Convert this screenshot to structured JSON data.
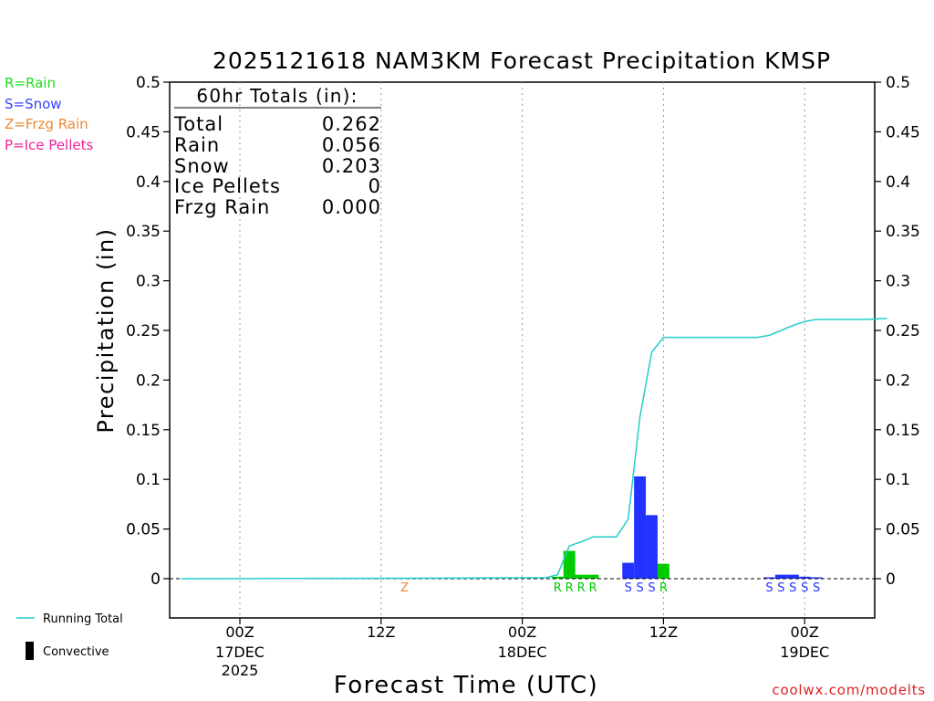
{
  "chart_data": {
    "type": "bar",
    "title": "2025121618 NAM3KM Forecast Precipitation KMSP",
    "xlabel": "Forecast Time (UTC)",
    "ylabel": "Precipitation (in)",
    "ylim": [
      -0.04,
      0.5
    ],
    "yticks": [
      0,
      0.05,
      0.1,
      0.15,
      0.2,
      0.25,
      0.3,
      0.35,
      0.4,
      0.45,
      0.5
    ],
    "ytick_labels": [
      "0",
      "0.05",
      "0.1",
      "0.15",
      "0.2",
      "0.25",
      "0.3",
      "0.35",
      "0.4",
      "0.45",
      "0.5"
    ],
    "xlim_hours": [
      -5,
      55
    ],
    "xticks": [
      {
        "hour": 0,
        "line1": "00Z",
        "line2": "17DEC",
        "line3": "2025"
      },
      {
        "hour": 12,
        "line1": "12Z",
        "line2": "",
        "line3": ""
      },
      {
        "hour": 24,
        "line1": "00Z",
        "line2": "18DEC",
        "line3": ""
      },
      {
        "hour": 36,
        "line1": "12Z",
        "line2": "",
        "line3": ""
      },
      {
        "hour": 48,
        "line1": "00Z",
        "line2": "19DEC",
        "line3": ""
      }
    ],
    "legend": {
      "types": [
        {
          "text": "R=Rain",
          "color": "#22dd22"
        },
        {
          "text": "S=Snow",
          "color": "#3344ff"
        },
        {
          "text": "Z=Frzg Rain",
          "color": "#ee8833"
        },
        {
          "text": "P=Ice Pellets",
          "color": "#ee2299"
        }
      ],
      "running_total": "Running Total",
      "convective": "Convective"
    },
    "totals_box": {
      "header": "60hr Totals (in):",
      "rows": [
        {
          "label": "Total",
          "value": "0.262"
        },
        {
          "label": "Rain",
          "value": "0.056"
        },
        {
          "label": "Snow",
          "value": "0.203"
        },
        {
          "label": "Ice Pellets",
          "value": "0"
        },
        {
          "label": "Frzg Rain",
          "value": "0.000"
        }
      ]
    },
    "bars": [
      {
        "hour": 27,
        "value": 0.002,
        "ptype": "R"
      },
      {
        "hour": 28,
        "value": 0.028,
        "ptype": "R"
      },
      {
        "hour": 29,
        "value": 0.004,
        "ptype": "R"
      },
      {
        "hour": 30,
        "value": 0.004,
        "ptype": "R"
      },
      {
        "hour": 33,
        "value": 0.016,
        "ptype": "S"
      },
      {
        "hour": 34,
        "value": 0.103,
        "ptype": "S"
      },
      {
        "hour": 35,
        "value": 0.064,
        "ptype": "S"
      },
      {
        "hour": 36,
        "value": 0.015,
        "ptype": "R"
      },
      {
        "hour": 45,
        "value": 0.001,
        "ptype": "S"
      },
      {
        "hour": 46,
        "value": 0.004,
        "ptype": "S"
      },
      {
        "hour": 47,
        "value": 0.004,
        "ptype": "S"
      },
      {
        "hour": 48,
        "value": 0.002,
        "ptype": "S"
      },
      {
        "hour": 49,
        "value": 0.001,
        "ptype": "S"
      }
    ],
    "ptype_labels": [
      {
        "hour": 14,
        "text": "Z"
      },
      {
        "hour": 27,
        "text": "R"
      },
      {
        "hour": 28,
        "text": "R"
      },
      {
        "hour": 29,
        "text": "R"
      },
      {
        "hour": 30,
        "text": "R"
      },
      {
        "hour": 33,
        "text": "S"
      },
      {
        "hour": 34,
        "text": "S"
      },
      {
        "hour": 35,
        "text": "S"
      },
      {
        "hour": 36,
        "text": "R"
      },
      {
        "hour": 45,
        "text": "S"
      },
      {
        "hour": 46,
        "text": "S"
      },
      {
        "hour": 47,
        "text": "S"
      },
      {
        "hour": 48,
        "text": "S"
      },
      {
        "hour": 49,
        "text": "S"
      }
    ],
    "running_total": [
      {
        "hour": -5,
        "value": 0
      },
      {
        "hour": 14,
        "value": 0.0005
      },
      {
        "hour": 26,
        "value": 0.001
      },
      {
        "hour": 27,
        "value": 0.004
      },
      {
        "hour": 28,
        "value": 0.033
      },
      {
        "hour": 29,
        "value": 0.037
      },
      {
        "hour": 30,
        "value": 0.042
      },
      {
        "hour": 32,
        "value": 0.042
      },
      {
        "hour": 33,
        "value": 0.06
      },
      {
        "hour": 34,
        "value": 0.163
      },
      {
        "hour": 35,
        "value": 0.228
      },
      {
        "hour": 36,
        "value": 0.243
      },
      {
        "hour": 44,
        "value": 0.243
      },
      {
        "hour": 45,
        "value": 0.245
      },
      {
        "hour": 46,
        "value": 0.25
      },
      {
        "hour": 47,
        "value": 0.255
      },
      {
        "hour": 48,
        "value": 0.259
      },
      {
        "hour": 49,
        "value": 0.261
      },
      {
        "hour": 53,
        "value": 0.261
      },
      {
        "hour": 55,
        "value": 0.262
      }
    ],
    "colors": {
      "rain": "#00cc00",
      "snow": "#2233ff",
      "frzg": "#ee8833",
      "ice": "#ee2299",
      "running_total": "#22cccc",
      "convective": "#000000"
    }
  },
  "watermark": "coolwx.com/modelts"
}
